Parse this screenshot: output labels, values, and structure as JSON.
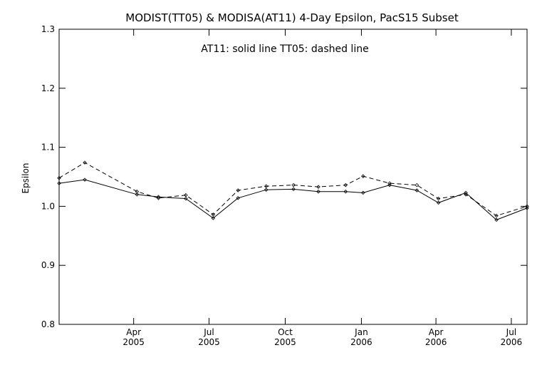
{
  "chart_data": {
    "type": "line",
    "title": "MODIST(TT05) & MODISA(AT11) 4-Day Epsilon, PacS15 Subset",
    "annotation": "AT11: solid line   TT05: dashed line",
    "xlabel": "",
    "ylabel": "Epsilon",
    "xlim": [
      "2005-01-01",
      "2006-07-20"
    ],
    "ylim": [
      0.8,
      1.3
    ],
    "yticks": [
      {
        "value": 0.8,
        "label": "0.8"
      },
      {
        "value": 0.9,
        "label": "0.9"
      },
      {
        "value": 1.0,
        "label": "1.0"
      },
      {
        "value": 1.1,
        "label": "1.1"
      },
      {
        "value": 1.2,
        "label": "1.2"
      },
      {
        "value": 1.3,
        "label": "1.3"
      }
    ],
    "xticks": [
      {
        "date": "2005-04-01",
        "month": "Apr",
        "year": "2005"
      },
      {
        "date": "2005-07-01",
        "month": "Jul",
        "year": "2005"
      },
      {
        "date": "2005-10-01",
        "month": "Oct",
        "year": "2005"
      },
      {
        "date": "2006-01-01",
        "month": "Jan",
        "year": "2006"
      },
      {
        "date": "2006-04-01",
        "month": "Apr",
        "year": "2006"
      },
      {
        "date": "2006-07-01",
        "month": "Jul",
        "year": "2006"
      }
    ],
    "grid": false,
    "series": [
      {
        "name": "AT11",
        "line_style": "solid",
        "x": [
          "2005-01-01",
          "2005-02-01",
          "2005-04-05",
          "2005-05-01",
          "2005-06-03",
          "2005-07-06",
          "2005-08-05",
          "2005-09-08",
          "2005-10-11",
          "2005-11-10",
          "2005-12-13",
          "2006-01-03",
          "2006-02-04",
          "2006-03-09",
          "2006-04-04",
          "2006-05-07",
          "2006-06-13",
          "2006-07-20"
        ],
        "values": [
          1.039,
          1.045,
          1.02,
          1.016,
          1.013,
          0.98,
          1.014,
          1.028,
          1.029,
          1.025,
          1.025,
          1.023,
          1.036,
          1.027,
          1.006,
          1.023,
          0.977,
          0.997
        ]
      },
      {
        "name": "TT05",
        "line_style": "dashed",
        "x": [
          "2005-01-01",
          "2005-02-01",
          "2005-04-05",
          "2005-05-01",
          "2005-06-03",
          "2005-07-06",
          "2005-08-05",
          "2005-09-08",
          "2005-10-11",
          "2005-11-10",
          "2005-12-13",
          "2006-01-03",
          "2006-02-04",
          "2006-03-09",
          "2006-04-04",
          "2006-05-07",
          "2006-06-13",
          "2006-07-20"
        ],
        "values": [
          1.048,
          1.074,
          1.025,
          1.014,
          1.019,
          0.986,
          1.027,
          1.034,
          1.036,
          1.033,
          1.036,
          1.051,
          1.039,
          1.036,
          1.013,
          1.02,
          0.984,
          1.0
        ]
      }
    ]
  }
}
